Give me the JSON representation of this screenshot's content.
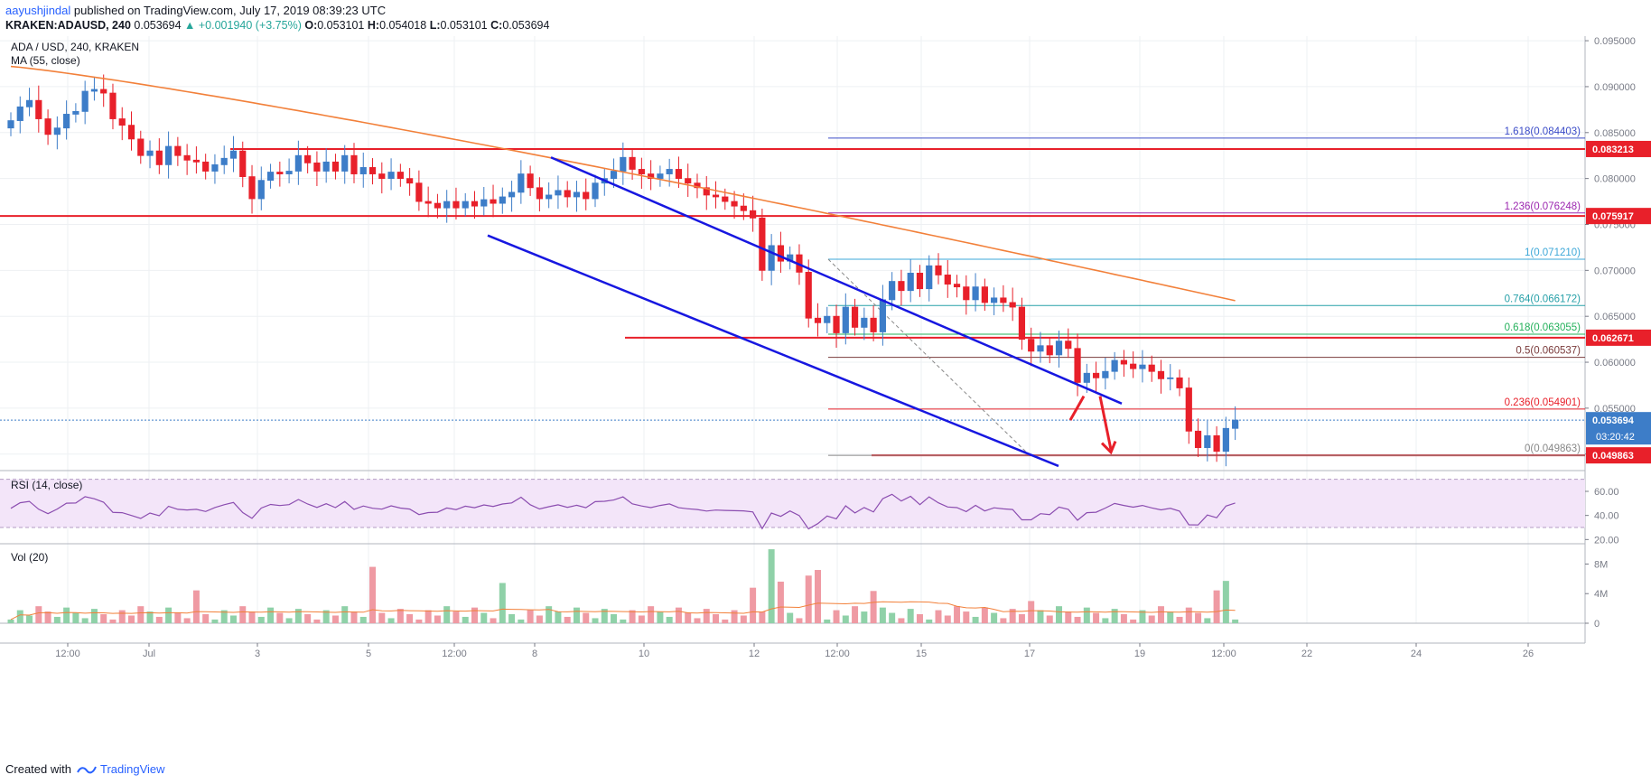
{
  "header": {
    "user": "aayushjindal",
    "published": " published on TradingView.com, July 17, 2019 08:39:23 UTC",
    "symbol": "KRAKEN:ADAUSD, 240",
    "last": "0.053694",
    "change": "▲ +0.001940 (+3.75%)",
    "o_label": "O:",
    "o": "0.053101",
    "h_label": "H:",
    "h": "0.054018",
    "l_label": "L:",
    "l": "0.053101",
    "c_label": "C:",
    "c": "0.053694"
  },
  "legend": {
    "title": "ADA / USD, 240, KRAKEN",
    "ma": "MA (55, close)",
    "rsi": "RSI (14, close)",
    "vol": "Vol (20)"
  },
  "footer": {
    "created": "Created with",
    "brand": "TradingView"
  },
  "colors": {
    "up": "#3d7dc8",
    "down": "#e8202a",
    "ma": "#f2803a",
    "channel": "#1717e0",
    "level": "#e8202a",
    "rsi": "#8b4db0",
    "vol_up": "#8fd1a8",
    "vol_down": "#ef9aa3"
  },
  "chart_data": [
    {
      "type": "candlestick",
      "title": "ADA / USD, 240, KRAKEN",
      "y_axis_ticks": [
        "0.095000",
        "0.090000",
        "0.085000",
        "0.080000",
        "0.075000",
        "0.070000",
        "0.065000",
        "0.060000",
        "0.055000",
        "0.050000"
      ],
      "ylim": [
        0.0485,
        0.0955
      ],
      "x_axis_ticks": [
        "12:00",
        "Jul",
        "3",
        "5",
        "12:00",
        "8",
        "10",
        "12",
        "12:00",
        "15",
        "17",
        "19",
        "12:00",
        "22",
        "24",
        "26"
      ],
      "price_labels": [
        "0.083213",
        "0.075917",
        "0.062671",
        "0.053694",
        "03:20:42",
        "0.049863"
      ],
      "fib_levels": [
        {
          "label": "1.618(0.084403)",
          "value": 0.084403,
          "color": "#3a4bc8"
        },
        {
          "label": "1.236(0.076248)",
          "value": 0.076248,
          "color": "#9c27b0"
        },
        {
          "label": "1(0.071210)",
          "value": 0.07121,
          "color": "#3ca7d8"
        },
        {
          "label": "0.764(0.066172)",
          "value": 0.066172,
          "color": "#26a0a8"
        },
        {
          "label": "0.618(0.063055)",
          "value": 0.063055,
          "color": "#23b05a"
        },
        {
          "label": "0.5(0.060537)",
          "value": 0.060537,
          "color": "#7a3b3b"
        },
        {
          "label": "0.236(0.054901)",
          "value": 0.054901,
          "color": "#e8202a"
        },
        {
          "label": "0(0.049863)",
          "value": 0.049863,
          "color": "#888888"
        }
      ],
      "horizontal_levels": [
        0.083213,
        0.075917,
        0.062671,
        0.049863
      ],
      "last_price": 0.053694,
      "closes": [
        0.0863,
        0.0878,
        0.0885,
        0.0865,
        0.0848,
        0.0855,
        0.087,
        0.0873,
        0.0895,
        0.0897,
        0.0893,
        0.0865,
        0.0858,
        0.0843,
        0.0825,
        0.083,
        0.0815,
        0.0835,
        0.0825,
        0.082,
        0.0818,
        0.0808,
        0.0815,
        0.0822,
        0.083,
        0.0802,
        0.0778,
        0.0798,
        0.0807,
        0.0805,
        0.0808,
        0.0825,
        0.0817,
        0.0808,
        0.0818,
        0.0808,
        0.0825,
        0.0805,
        0.0812,
        0.0805,
        0.08,
        0.0807,
        0.08,
        0.0795,
        0.0775,
        0.0773,
        0.0768,
        0.0775,
        0.0768,
        0.0775,
        0.077,
        0.0777,
        0.0773,
        0.078,
        0.0785,
        0.0805,
        0.079,
        0.0778,
        0.0782,
        0.0787,
        0.078,
        0.0785,
        0.0778,
        0.0795,
        0.08,
        0.0808,
        0.0823,
        0.081,
        0.0805,
        0.08,
        0.0805,
        0.081,
        0.08,
        0.0795,
        0.079,
        0.0782,
        0.078,
        0.0775,
        0.077,
        0.0765,
        0.0757,
        0.07,
        0.0727,
        0.071,
        0.0717,
        0.0698,
        0.0648,
        0.0643,
        0.065,
        0.0632,
        0.066,
        0.0638,
        0.0648,
        0.0633,
        0.0668,
        0.0688,
        0.0678,
        0.0697,
        0.068,
        0.0705,
        0.0695,
        0.0685,
        0.0682,
        0.0668,
        0.0682,
        0.0665,
        0.067,
        0.0665,
        0.066,
        0.0625,
        0.0612,
        0.0618,
        0.0608,
        0.0623,
        0.0615,
        0.0578,
        0.0588,
        0.0583,
        0.059,
        0.0602,
        0.0598,
        0.0593,
        0.0597,
        0.059,
        0.0582,
        0.0583,
        0.0572,
        0.0525,
        0.0507,
        0.052,
        0.0503,
        0.0528,
        0.0537
      ],
      "ma55_start": 0.0922,
      "ma55_end": 0.0667
    },
    {
      "type": "line",
      "title": "RSI (14, close)",
      "y_axis_ticks": [
        "60.00",
        "40.00",
        "20.00"
      ],
      "ylim": [
        18,
        75
      ],
      "bands": [
        30,
        70
      ]
    },
    {
      "type": "bar",
      "title": "Vol (20)",
      "y_axis_ticks": [
        "8M",
        "4M",
        "0"
      ],
      "ylim": [
        0,
        10.5
      ],
      "unit": "M"
    }
  ]
}
